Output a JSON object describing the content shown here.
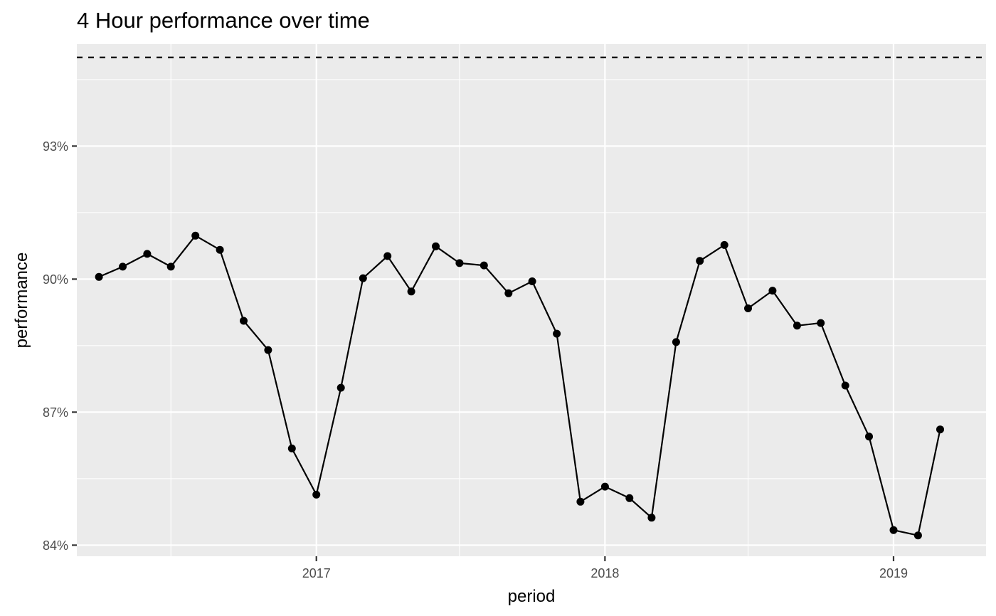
{
  "chart_data": {
    "type": "line",
    "title": "4 Hour performance over time",
    "xlabel": "period",
    "ylabel": "performance",
    "x_tick_labels": [
      "2017",
      "2018",
      "2019"
    ],
    "y_tick_labels": [
      "84%",
      "87%",
      "90%",
      "93%"
    ],
    "y_ticks": [
      84,
      87,
      90,
      93
    ],
    "ylim": [
      83.75,
      95.3
    ],
    "xlim": [
      "2016-03-04",
      "2019-04-28"
    ],
    "grid": true,
    "target_line": {
      "value": 95,
      "style": "dashed"
    },
    "series": [
      {
        "x": [
          "2016-04-01",
          "2016-05-01",
          "2016-06-01",
          "2016-07-01",
          "2016-08-01",
          "2016-09-01",
          "2016-10-01",
          "2016-11-01",
          "2016-12-01",
          "2017-01-01",
          "2017-02-01",
          "2017-03-01",
          "2017-04-01",
          "2017-05-01",
          "2017-06-01",
          "2017-07-01",
          "2017-08-01",
          "2017-09-01",
          "2017-10-01",
          "2017-11-01",
          "2017-12-01",
          "2018-01-01",
          "2018-02-01",
          "2018-03-01",
          "2018-04-01",
          "2018-05-01",
          "2018-06-01",
          "2018-07-01",
          "2018-08-01",
          "2018-09-01",
          "2018-10-01",
          "2018-11-01",
          "2018-12-01",
          "2019-01-01",
          "2019-02-01",
          "2019-03-01"
        ],
        "values": [
          90.05,
          90.28,
          90.57,
          90.28,
          90.98,
          90.66,
          89.06,
          88.4,
          86.18,
          85.14,
          87.55,
          90.02,
          90.52,
          89.72,
          90.74,
          90.36,
          90.31,
          89.68,
          89.95,
          88.77,
          84.98,
          85.32,
          85.06,
          84.62,
          88.58,
          90.41,
          90.77,
          89.34,
          89.74,
          88.95,
          89.01,
          87.6,
          86.45,
          84.34,
          84.22,
          86.61
        ],
        "color": "#000000"
      }
    ],
    "colors": {
      "panel": "#ebebeb",
      "grid": "#ffffff",
      "line": "#000000"
    }
  }
}
